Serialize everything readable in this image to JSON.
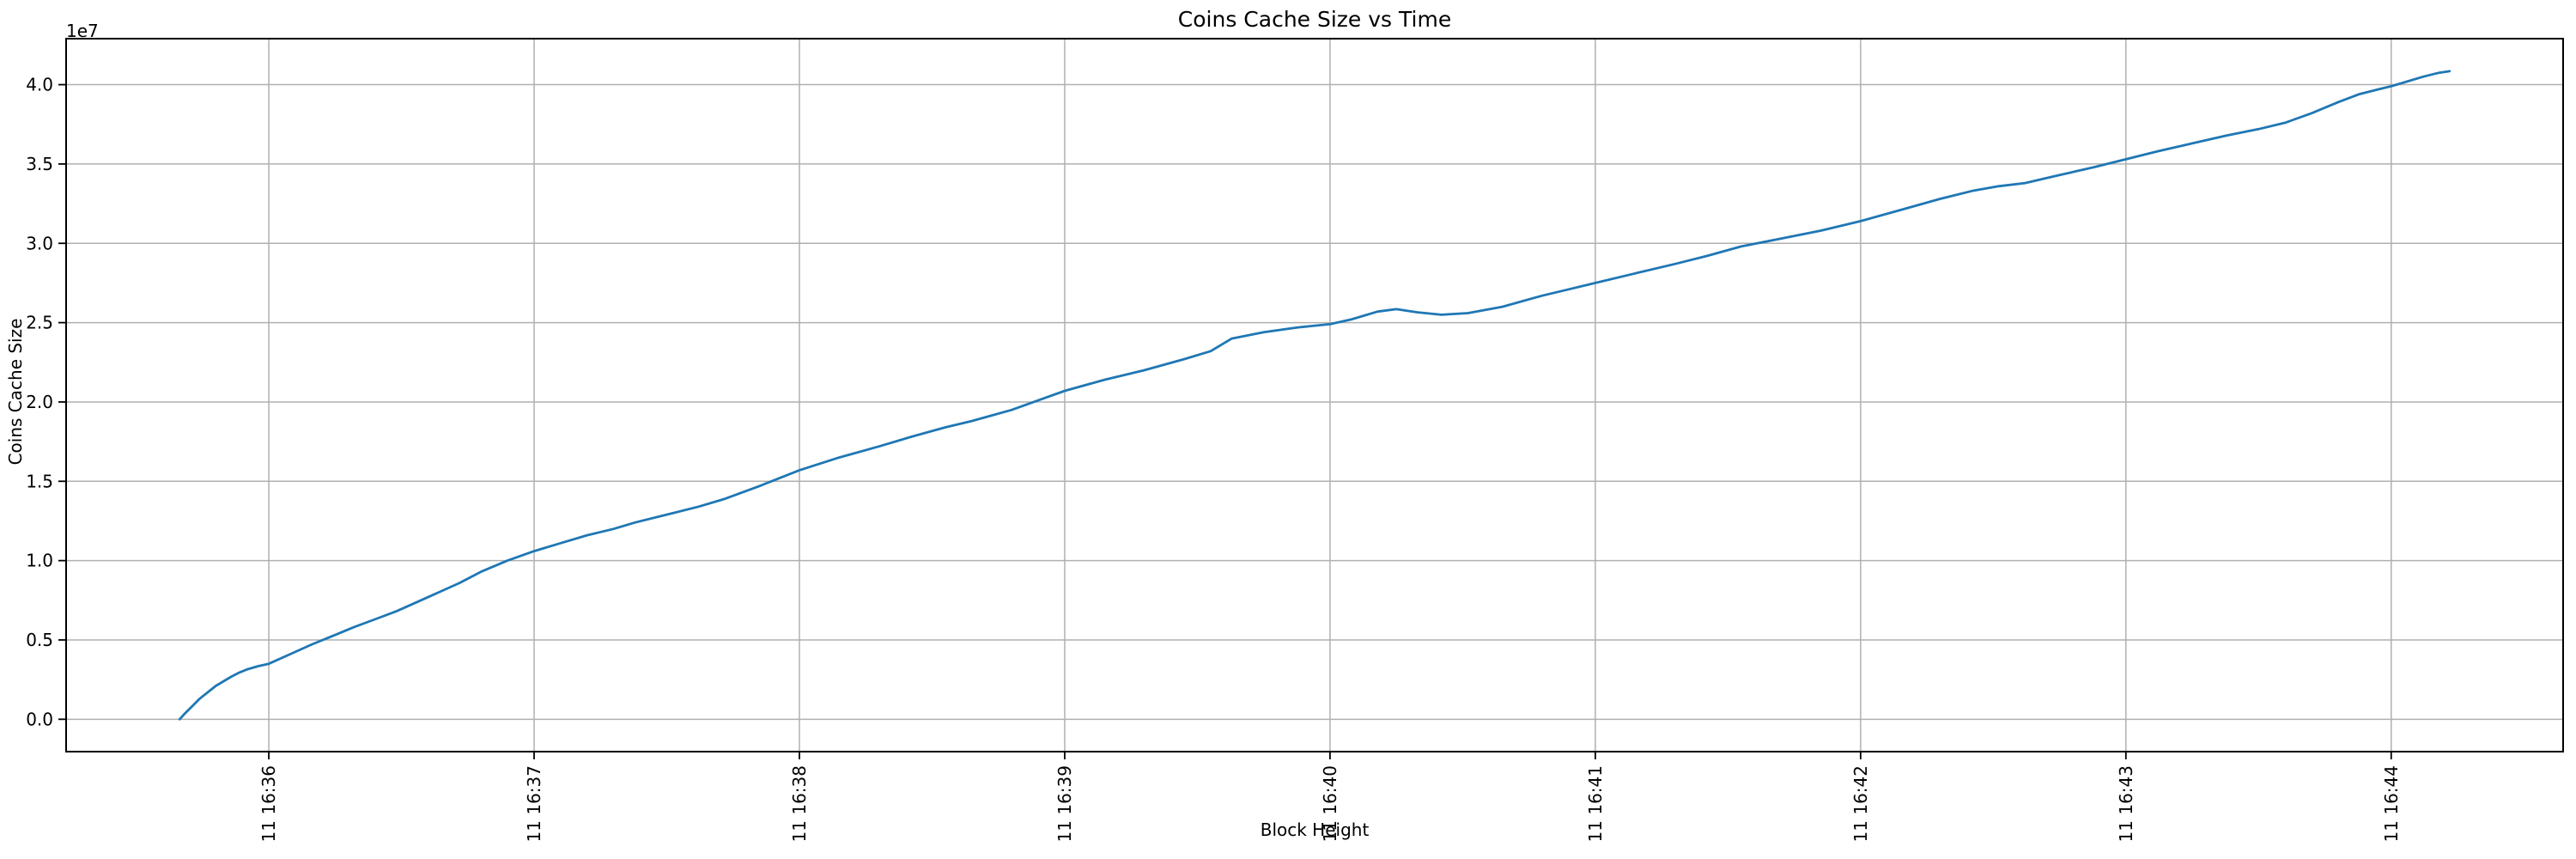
{
  "chart_data": {
    "type": "line",
    "title": "Coins Cache Size vs Time",
    "xlabel": "Block Height",
    "ylabel": "Coins Cache Size",
    "y_offset_text": "1e7",
    "grid": true,
    "legend": "none",
    "x_unit": "minutes after 11 16:36",
    "xlim": [
      -0.764,
      8.648
    ],
    "ylim": [
      -2040000,
      42900000
    ],
    "x_tick_positions": [
      0,
      1,
      2,
      3,
      4,
      5,
      6,
      7,
      8
    ],
    "x_tick_labels": [
      "11 16:36",
      "11 16:37",
      "11 16:38",
      "11 16:39",
      "11 16:40",
      "11 16:41",
      "11 16:42",
      "11 16:43",
      "11 16:44"
    ],
    "y_tick_positions": [
      0,
      5000000,
      10000000,
      15000000,
      20000000,
      25000000,
      30000000,
      35000000,
      40000000
    ],
    "y_tick_labels": [
      "0.0",
      "0.5",
      "1.0",
      "1.5",
      "2.0",
      "2.5",
      "3.0",
      "3.5",
      "4.0"
    ],
    "colors": {
      "line": "#1f77b4",
      "grid": "#b0b0b0",
      "axes": "#000000",
      "text": "#000000",
      "background": "#ffffff"
    },
    "series": [
      {
        "name": "coins-cache-size",
        "points": [
          [
            -0.336,
            0
          ],
          [
            -0.32,
            300000
          ],
          [
            -0.29,
            800000
          ],
          [
            -0.26,
            1300000
          ],
          [
            -0.23,
            1700000
          ],
          [
            -0.2,
            2100000
          ],
          [
            -0.17,
            2400000
          ],
          [
            -0.14,
            2700000
          ],
          [
            -0.11,
            2950000
          ],
          [
            -0.08,
            3150000
          ],
          [
            -0.04,
            3350000
          ],
          [
            0.0,
            3500000
          ],
          [
            0.08,
            4100000
          ],
          [
            0.16,
            4700000
          ],
          [
            0.24,
            5250000
          ],
          [
            0.32,
            5800000
          ],
          [
            0.4,
            6300000
          ],
          [
            0.48,
            6800000
          ],
          [
            0.56,
            7400000
          ],
          [
            0.64,
            8000000
          ],
          [
            0.72,
            8600000
          ],
          [
            0.8,
            9300000
          ],
          [
            0.9,
            10000000
          ],
          [
            1.0,
            10600000
          ],
          [
            1.1,
            11100000
          ],
          [
            1.2,
            11600000
          ],
          [
            1.3,
            12000000
          ],
          [
            1.38,
            12400000
          ],
          [
            1.5,
            12900000
          ],
          [
            1.62,
            13400000
          ],
          [
            1.72,
            13900000
          ],
          [
            1.85,
            14700000
          ],
          [
            2.0,
            15700000
          ],
          [
            2.15,
            16500000
          ],
          [
            2.3,
            17200000
          ],
          [
            2.42,
            17800000
          ],
          [
            2.55,
            18400000
          ],
          [
            2.65,
            18800000
          ],
          [
            2.8,
            19500000
          ],
          [
            2.9,
            20100000
          ],
          [
            3.0,
            20700000
          ],
          [
            3.15,
            21400000
          ],
          [
            3.3,
            22000000
          ],
          [
            3.45,
            22700000
          ],
          [
            3.55,
            23200000
          ],
          [
            3.63,
            24000000
          ],
          [
            3.75,
            24400000
          ],
          [
            3.88,
            24700000
          ],
          [
            4.0,
            24900000
          ],
          [
            4.08,
            25200000
          ],
          [
            4.18,
            25700000
          ],
          [
            4.25,
            25850000
          ],
          [
            4.33,
            25650000
          ],
          [
            4.42,
            25500000
          ],
          [
            4.52,
            25600000
          ],
          [
            4.65,
            26000000
          ],
          [
            4.8,
            26700000
          ],
          [
            4.9,
            27100000
          ],
          [
            5.0,
            27500000
          ],
          [
            5.15,
            28100000
          ],
          [
            5.3,
            28700000
          ],
          [
            5.42,
            29200000
          ],
          [
            5.55,
            29800000
          ],
          [
            5.7,
            30300000
          ],
          [
            5.85,
            30800000
          ],
          [
            6.0,
            31400000
          ],
          [
            6.15,
            32100000
          ],
          [
            6.3,
            32800000
          ],
          [
            6.42,
            33300000
          ],
          [
            6.52,
            33600000
          ],
          [
            6.62,
            33800000
          ],
          [
            6.75,
            34300000
          ],
          [
            6.88,
            34800000
          ],
          [
            7.0,
            35300000
          ],
          [
            7.12,
            35800000
          ],
          [
            7.25,
            36300000
          ],
          [
            7.38,
            36800000
          ],
          [
            7.5,
            37200000
          ],
          [
            7.6,
            37600000
          ],
          [
            7.7,
            38200000
          ],
          [
            7.8,
            38900000
          ],
          [
            7.88,
            39400000
          ],
          [
            7.95,
            39700000
          ],
          [
            8.0,
            39900000
          ],
          [
            8.06,
            40200000
          ],
          [
            8.12,
            40500000
          ],
          [
            8.18,
            40750000
          ],
          [
            8.22,
            40850000
          ]
        ]
      }
    ]
  }
}
